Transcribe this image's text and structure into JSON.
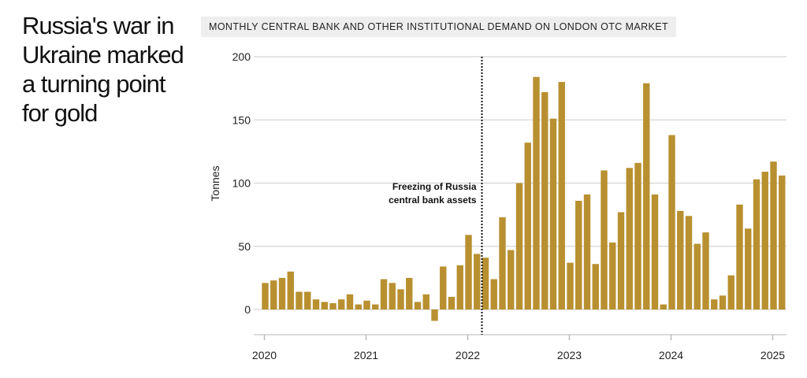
{
  "title": "Russia's war in Ukraine marked a turning point for gold",
  "title_lines": [
    "Russia's war in",
    "Ukraine marked",
    "a turning point",
    "for gold"
  ],
  "chart_data": {
    "type": "bar",
    "title": "MONTHLY CENTRAL BANK AND OTHER INSTITUTIONAL DEMAND ON LONDON OTC MARKET",
    "ylabel": "Tonnes",
    "xlabel": "",
    "ylim": [
      -20,
      200
    ],
    "yticks": [
      0,
      50,
      100,
      150,
      200
    ],
    "xticks": [
      "2020",
      "2021",
      "2022",
      "2023",
      "2024",
      "2025"
    ],
    "grid": true,
    "bar_color": "#b89030",
    "start_month": "2020-01",
    "values": [
      21,
      23,
      25,
      30,
      14,
      14,
      8,
      6,
      5,
      8,
      12,
      4,
      7,
      4,
      24,
      21,
      16,
      25,
      6,
      12,
      -9,
      34,
      10,
      35,
      59,
      44,
      41,
      24,
      73,
      47,
      100,
      132,
      184,
      172,
      151,
      180,
      37,
      86,
      91,
      36,
      110,
      53,
      77,
      112,
      116,
      179,
      91,
      4,
      138,
      78,
      74,
      52,
      61,
      8,
      11,
      27,
      83,
      64,
      103,
      109,
      117,
      106
    ],
    "annotation": {
      "month": "2022-03",
      "lines": [
        "Freezing of Russia",
        "central bank assets"
      ]
    }
  }
}
